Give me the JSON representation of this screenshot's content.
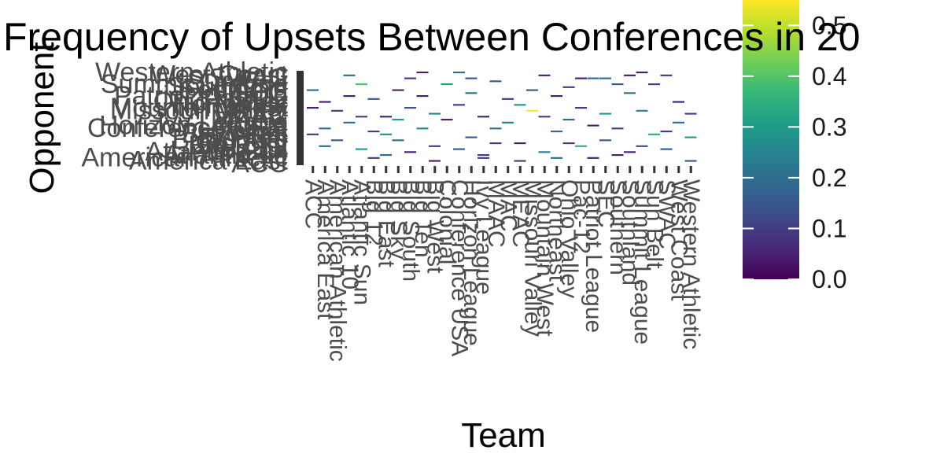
{
  "chart_data": {
    "type": "heatmap",
    "title": "Frequency of Upsets Between Conferences in 20",
    "xlabel": "Team",
    "ylabel": "Opponent",
    "conferences": [
      "ACC",
      "America East",
      "American Athletic",
      "Atlantic 10",
      "Atlantic Sun",
      "Big 12",
      "Big East",
      "Big Sky",
      "Big South",
      "Big Ten",
      "Big West",
      "Colonial",
      "Conference USA",
      "Horizon League",
      "Ivy League",
      "MAAC",
      "MAC",
      "MEAC",
      "Missouri Valley",
      "Mountain West",
      "Northeast",
      "Ohio Valley",
      "Pac-12",
      "Patriot League",
      "SEC",
      "Southern",
      "Southland",
      "Summit League",
      "Sun Belt",
      "SWAC",
      "West Coast",
      "Western Athletic"
    ],
    "colorbar": {
      "ticks": [
        "0.0",
        "0.1",
        "0.2",
        "0.3",
        "0.4",
        "0.5"
      ],
      "range": [
        0,
        0.55
      ],
      "colors": [
        "#440154",
        "#482878",
        "#3e4a89",
        "#31688e",
        "#26828e",
        "#1f9e89",
        "#35b779",
        "#6ece58",
        "#b5de2b",
        "#fde725"
      ]
    },
    "cells": [
      {
        "team": 3,
        "opp": 30,
        "value": 0.2
      },
      {
        "team": 4,
        "opp": 27,
        "value": 0.4
      },
      {
        "team": 5,
        "opp": 22,
        "value": 0.15
      },
      {
        "team": 6,
        "opp": 10,
        "value": 0.3
      },
      {
        "team": 7,
        "opp": 25,
        "value": 0.05
      },
      {
        "team": 8,
        "opp": 29,
        "value": 0.1
      },
      {
        "team": 10,
        "opp": 17,
        "value": 0.25
      },
      {
        "team": 12,
        "opp": 31,
        "value": 0.2
      },
      {
        "team": 15,
        "opp": 28,
        "value": 0.15
      },
      {
        "team": 17,
        "opp": 20,
        "value": 0.3
      },
      {
        "team": 19,
        "opp": 30,
        "value": 0.05
      },
      {
        "team": 21,
        "opp": 26,
        "value": 0.1
      },
      {
        "team": 23,
        "opp": 29,
        "value": 0.2
      },
      {
        "team": 25,
        "opp": 27,
        "value": 0.15
      },
      {
        "team": 27,
        "opp": 31,
        "value": 0.05
      },
      {
        "team": 29,
        "opp": 30,
        "value": 0.1
      },
      {
        "team": 0,
        "opp": 25,
        "value": 0.2
      },
      {
        "team": 1,
        "opp": 21,
        "value": 0.05
      },
      {
        "team": 2,
        "opp": 18,
        "value": 0.1
      },
      {
        "team": 3,
        "opp": 14,
        "value": 0.2
      },
      {
        "team": 4,
        "opp": 5,
        "value": 0.3
      },
      {
        "team": 5,
        "opp": 11,
        "value": 0.1
      },
      {
        "team": 6,
        "opp": 16,
        "value": 0.05
      },
      {
        "team": 7,
        "opp": 8,
        "value": 0.2
      },
      {
        "team": 8,
        "opp": 19,
        "value": 0.15
      },
      {
        "team": 9,
        "opp": 23,
        "value": 0.05
      },
      {
        "team": 9,
        "opp": 12,
        "value": 0.25
      },
      {
        "team": 10,
        "opp": 6,
        "value": 0.1
      },
      {
        "team": 11,
        "opp": 27,
        "value": 0.3
      },
      {
        "team": 11,
        "opp": 15,
        "value": 0.05
      },
      {
        "team": 12,
        "opp": 20,
        "value": 0.1
      },
      {
        "team": 13,
        "opp": 24,
        "value": 0.2
      },
      {
        "team": 13,
        "opp": 9,
        "value": 0.15
      },
      {
        "team": 14,
        "opp": 16,
        "value": 0.05
      },
      {
        "team": 14,
        "opp": 3,
        "value": 0.1
      },
      {
        "team": 15,
        "opp": 12,
        "value": 0.2
      },
      {
        "team": 16,
        "opp": 22,
        "value": 0.1
      },
      {
        "team": 16,
        "opp": 14,
        "value": 0.25
      },
      {
        "team": 17,
        "opp": 7,
        "value": 0.05
      },
      {
        "team": 18,
        "opp": 18,
        "value": 0.55
      },
      {
        "team": 18,
        "opp": 25,
        "value": 0.15
      },
      {
        "team": 19,
        "opp": 16,
        "value": 0.1
      },
      {
        "team": 20,
        "opp": 11,
        "value": 0.2
      },
      {
        "team": 20,
        "opp": 23,
        "value": 0.05
      },
      {
        "team": 21,
        "opp": 15,
        "value": 0.2
      },
      {
        "team": 22,
        "opp": 6,
        "value": 0.35
      },
      {
        "team": 22,
        "opp": 19,
        "value": 0.1
      },
      {
        "team": 23,
        "opp": 13,
        "value": 0.05
      },
      {
        "team": 24,
        "opp": 8,
        "value": 0.15
      },
      {
        "team": 24,
        "opp": 17,
        "value": 0.3
      },
      {
        "team": 25,
        "opp": 12,
        "value": 0.1
      },
      {
        "team": 26,
        "opp": 24,
        "value": 0.2
      },
      {
        "team": 26,
        "opp": 4,
        "value": 0.05
      },
      {
        "team": 27,
        "opp": 18,
        "value": 0.25
      },
      {
        "team": 28,
        "opp": 27,
        "value": 0.1
      },
      {
        "team": 28,
        "opp": 10,
        "value": 0.35
      },
      {
        "team": 29,
        "opp": 5,
        "value": 0.15
      },
      {
        "team": 30,
        "opp": 21,
        "value": 0.05
      },
      {
        "team": 30,
        "opp": 14,
        "value": 0.2
      },
      {
        "team": 31,
        "opp": 17,
        "value": 0.1
      },
      {
        "team": 31,
        "opp": 9,
        "value": 0.3
      },
      {
        "team": 2,
        "opp": 8,
        "value": 0.15
      },
      {
        "team": 6,
        "opp": 3,
        "value": 0.2
      },
      {
        "team": 10,
        "opp": 1,
        "value": 0.05
      },
      {
        "team": 14,
        "opp": 2,
        "value": 0.1
      },
      {
        "team": 19,
        "opp": 4,
        "value": 0.25
      },
      {
        "team": 23,
        "opp": 2,
        "value": 0.05
      },
      {
        "team": 27,
        "opp": 6,
        "value": 0.15
      },
      {
        "team": 1,
        "opp": 12,
        "value": 0.2
      },
      {
        "team": 5,
        "opp": 2,
        "value": 0.1
      },
      {
        "team": 8,
        "opp": 4,
        "value": 0.05
      },
      {
        "team": 12,
        "opp": 5,
        "value": 0.15
      },
      {
        "team": 15,
        "opp": 7,
        "value": 0.1
      },
      {
        "team": 20,
        "opp": 2,
        "value": 0.2
      },
      {
        "team": 25,
        "opp": 3,
        "value": 0.05
      },
      {
        "team": 29,
        "opp": 11,
        "value": 0.1
      },
      {
        "team": 3,
        "opp": 23,
        "value": 0.05
      },
      {
        "team": 7,
        "opp": 15,
        "value": 0.3
      },
      {
        "team": 21,
        "opp": 7,
        "value": 0.1
      },
      {
        "team": 24,
        "opp": 29,
        "value": 0.2
      },
      {
        "team": 26,
        "opp": 30,
        "value": 0.05
      },
      {
        "team": 31,
        "opp": 1,
        "value": 0.15
      },
      {
        "team": 0,
        "opp": 10,
        "value": 0.1
      },
      {
        "team": 0,
        "opp": 19,
        "value": 0.05
      },
      {
        "team": 1,
        "opp": 6,
        "value": 0.2
      },
      {
        "team": 4,
        "opp": 16,
        "value": 0.1
      },
      {
        "team": 9,
        "opp": 31,
        "value": 0.05
      },
      {
        "team": 13,
        "opp": 29,
        "value": 0.15
      },
      {
        "team": 17,
        "opp": 1,
        "value": 0.1
      },
      {
        "team": 22,
        "opp": 29,
        "value": 0.05
      }
    ]
  }
}
